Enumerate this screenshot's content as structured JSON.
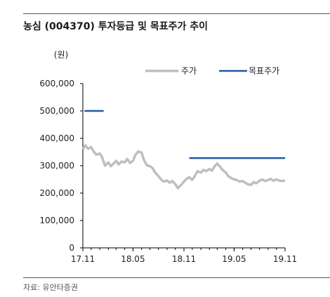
{
  "header": {
    "title": "농심 (004370) 투자등급 및 목표주가 추이"
  },
  "footer": {
    "source": "자료: 유안타증권"
  },
  "chart_data": {
    "type": "line",
    "unit_label": "(원)",
    "title": "농심 (004370) 투자등급 및 목표주가 추이",
    "xlabel": "",
    "ylabel": "",
    "x_tick_labels": [
      "17.11",
      "18.05",
      "18.11",
      "19.05",
      "19.11"
    ],
    "x_ticks": [
      "2017-11",
      "2018-05",
      "2018-11",
      "2019-05",
      "2019-11"
    ],
    "y_ticks": [
      0,
      100000,
      200000,
      300000,
      400000,
      500000,
      600000
    ],
    "y_tick_labels": [
      "0",
      "100,000",
      "200,000",
      "300,000",
      "400,000",
      "500,000",
      "600,000"
    ],
    "xlim": [
      "2017-11",
      "2019-11"
    ],
    "ylim": [
      0,
      600000
    ],
    "legend_position": "top-right",
    "grid": false,
    "series": [
      {
        "name": "주가",
        "color": "#bfbfbf",
        "points": [
          [
            "2017-11-01",
            360000
          ],
          [
            "2017-11-10",
            375000
          ],
          [
            "2017-11-20",
            362000
          ],
          [
            "2017-12-01",
            368000
          ],
          [
            "2017-12-10",
            352000
          ],
          [
            "2017-12-20",
            340000
          ],
          [
            "2018-01-01",
            345000
          ],
          [
            "2018-01-10",
            330000
          ],
          [
            "2018-01-20",
            300000
          ],
          [
            "2018-02-01",
            312000
          ],
          [
            "2018-02-10",
            298000
          ],
          [
            "2018-02-20",
            308000
          ],
          [
            "2018-03-01",
            318000
          ],
          [
            "2018-03-10",
            305000
          ],
          [
            "2018-03-20",
            315000
          ],
          [
            "2018-04-01",
            312000
          ],
          [
            "2018-04-10",
            325000
          ],
          [
            "2018-04-20",
            310000
          ],
          [
            "2018-05-01",
            318000
          ],
          [
            "2018-05-10",
            340000
          ],
          [
            "2018-05-20",
            352000
          ],
          [
            "2018-06-01",
            348000
          ],
          [
            "2018-06-10",
            320000
          ],
          [
            "2018-06-20",
            302000
          ],
          [
            "2018-07-01",
            298000
          ],
          [
            "2018-07-10",
            292000
          ],
          [
            "2018-07-20",
            275000
          ],
          [
            "2018-08-01",
            262000
          ],
          [
            "2018-08-10",
            250000
          ],
          [
            "2018-08-20",
            242000
          ],
          [
            "2018-09-01",
            246000
          ],
          [
            "2018-09-10",
            238000
          ],
          [
            "2018-09-20",
            244000
          ],
          [
            "2018-10-01",
            232000
          ],
          [
            "2018-10-10",
            218000
          ],
          [
            "2018-10-20",
            228000
          ],
          [
            "2018-11-01",
            242000
          ],
          [
            "2018-11-10",
            252000
          ],
          [
            "2018-11-20",
            258000
          ],
          [
            "2018-12-01",
            248000
          ],
          [
            "2018-12-10",
            262000
          ],
          [
            "2018-12-20",
            280000
          ],
          [
            "2019-01-01",
            275000
          ],
          [
            "2019-01-10",
            285000
          ],
          [
            "2019-01-20",
            280000
          ],
          [
            "2019-02-01",
            288000
          ],
          [
            "2019-02-10",
            282000
          ],
          [
            "2019-02-20",
            298000
          ],
          [
            "2019-03-01",
            308000
          ],
          [
            "2019-03-10",
            298000
          ],
          [
            "2019-03-20",
            285000
          ],
          [
            "2019-04-01",
            275000
          ],
          [
            "2019-04-10",
            262000
          ],
          [
            "2019-04-20",
            255000
          ],
          [
            "2019-05-01",
            250000
          ],
          [
            "2019-05-10",
            248000
          ],
          [
            "2019-05-20",
            242000
          ],
          [
            "2019-06-01",
            244000
          ],
          [
            "2019-06-10",
            238000
          ],
          [
            "2019-06-20",
            232000
          ],
          [
            "2019-07-01",
            230000
          ],
          [
            "2019-07-10",
            240000
          ],
          [
            "2019-07-20",
            236000
          ],
          [
            "2019-08-01",
            245000
          ],
          [
            "2019-08-10",
            250000
          ],
          [
            "2019-08-20",
            244000
          ],
          [
            "2019-09-01",
            248000
          ],
          [
            "2019-09-10",
            252000
          ],
          [
            "2019-09-20",
            245000
          ],
          [
            "2019-10-01",
            250000
          ],
          [
            "2019-10-10",
            246000
          ],
          [
            "2019-10-20",
            244000
          ],
          [
            "2019-11-01",
            246000
          ]
        ]
      },
      {
        "name": "목표주가",
        "color": "#1f5aa6",
        "segments": [
          [
            [
              "2017-11-07",
              500000
            ],
            [
              "2018-01-15",
              500000
            ]
          ],
          [
            [
              "2018-11-20",
              328000
            ],
            [
              "2019-11-01",
              328000
            ]
          ]
        ]
      }
    ]
  }
}
